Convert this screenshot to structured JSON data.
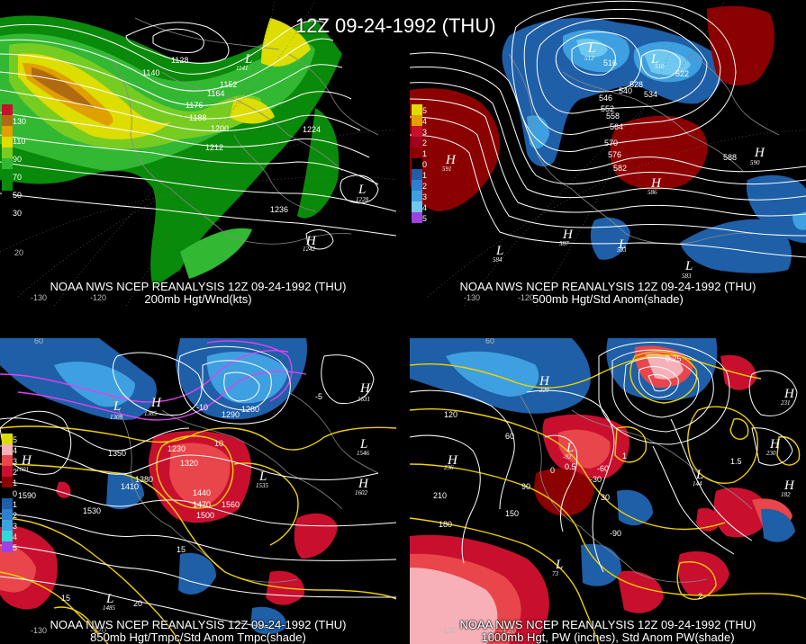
{
  "title": "12Z 09-24-1992 (THU)",
  "colors": {
    "background": "#000000",
    "anom_pos": [
      "#8b0000",
      "#c8102e",
      "#e8464a",
      "#f08080",
      "#f7b0b8"
    ],
    "anom_neg": [
      "#1e5fa8",
      "#2f7fd0",
      "#3ea0e0",
      "#6ec8f0",
      "#30d8d8"
    ],
    "wind": [
      "#0a8a0a",
      "#33b833",
      "#77cc22",
      "#dddd00",
      "#e0a000",
      "#b06b10",
      "#c8102e"
    ],
    "yellow_contour": "#f0d000",
    "magenta_contour": "#e040f0"
  },
  "panels": [
    {
      "id": "200mb",
      "caption_line1": "NOAA NWS NCEP REANALYSIS 12Z 09-24-1992 (THU)",
      "caption_line2": "200mb Hgt/Wnd(kts)",
      "legend": [
        "130",
        "110",
        "90",
        "70",
        "50",
        "30"
      ],
      "contour_labels": [
        "1128",
        "1140",
        "1152",
        "1164",
        "1176",
        "1188",
        "1200",
        "1212",
        "1224",
        "1236",
        "1141"
      ],
      "centers": [
        {
          "type": "L",
          "value": "1141"
        },
        {
          "type": "L",
          "value": "1228"
        },
        {
          "type": "H",
          "value": "1242"
        }
      ],
      "ticks": [
        "-130",
        "-120",
        "20"
      ]
    },
    {
      "id": "500mb",
      "caption_line1": "NOAA NWS NCEP REANALYSIS 12Z 09-24-1992 (THU)",
      "caption_line2": "500mb Hgt/Std Anom(shade)",
      "legend": [
        "5",
        "4",
        "3",
        "2",
        "1",
        "0",
        "1",
        "2",
        "3",
        "4",
        "5"
      ],
      "contour_labels": [
        "516",
        "528",
        "534",
        "540",
        "546",
        "552",
        "558",
        "564",
        "570",
        "576",
        "582",
        "588",
        "522"
      ],
      "centers": [
        {
          "type": "L",
          "value": "512"
        },
        {
          "type": "L",
          "value": "510"
        },
        {
          "type": "H",
          "value": "591"
        },
        {
          "type": "H",
          "value": "586"
        },
        {
          "type": "H",
          "value": "587"
        },
        {
          "type": "H",
          "value": "590"
        },
        {
          "type": "L",
          "value": "584"
        },
        {
          "type": "L",
          "value": "583"
        },
        {
          "type": "L",
          "value": "583"
        }
      ],
      "ticks": [
        "-130",
        "-120"
      ]
    },
    {
      "id": "850mb",
      "caption_line1": "NOAA NWS NCEP REANALYSIS 12Z 09-24-1992 (THU)",
      "caption_line2": "850mb Hgt/Tmpc/Std Anom Tmpc(shade)",
      "legend": [
        "5",
        "4",
        "3",
        "2",
        "1",
        "0",
        "1",
        "2",
        "3",
        "4",
        "5"
      ],
      "contour_labels": [
        "1350",
        "1380",
        "1410",
        "1440",
        "1470",
        "1500",
        "1530",
        "1560",
        "1590",
        "1320",
        "1290",
        "1260",
        "1230",
        "-10",
        "10",
        "15",
        "20",
        "15",
        "-5"
      ],
      "centers": [
        {
          "type": "H",
          "value": "1601"
        },
        {
          "type": "H",
          "value": "1365"
        },
        {
          "type": "L",
          "value": "1309"
        },
        {
          "type": "H",
          "value": "1631"
        },
        {
          "type": "L",
          "value": "1546"
        },
        {
          "type": "L",
          "value": "1535"
        },
        {
          "type": "H",
          "value": "1602"
        },
        {
          "type": "L",
          "value": "1485"
        }
      ],
      "ticks": [
        "-130",
        "-120",
        "60"
      ]
    },
    {
      "id": "1000mb",
      "caption_line1": "NOAA NWS NCEP REANALYSIS 12Z 09-24-1992 (THU)",
      "caption_line2": "1000mb Hgt, PW (inches), Std Anom PW(shade)",
      "legend": [
        "5",
        "4",
        "3",
        "2",
        "1",
        "0",
        "1",
        "2",
        "3",
        "4",
        "5"
      ],
      "contour_labels": [
        "210",
        "180",
        "150",
        "120",
        "90",
        "60",
        "30",
        "0",
        "-30",
        "-60",
        "-90",
        "0.5",
        "1",
        "1.5",
        "2",
        "0.25"
      ],
      "centers": [
        {
          "type": "H",
          "value": "236"
        },
        {
          "type": "L",
          "value": "-92"
        },
        {
          "type": "H",
          "value": "229"
        },
        {
          "type": "H",
          "value": "231"
        },
        {
          "type": "H",
          "value": "230"
        },
        {
          "type": "H",
          "value": "182"
        },
        {
          "type": "L",
          "value": "73"
        },
        {
          "type": "L",
          "value": "144"
        }
      ],
      "ticks": [
        "-130",
        "-120",
        "60"
      ]
    }
  ]
}
